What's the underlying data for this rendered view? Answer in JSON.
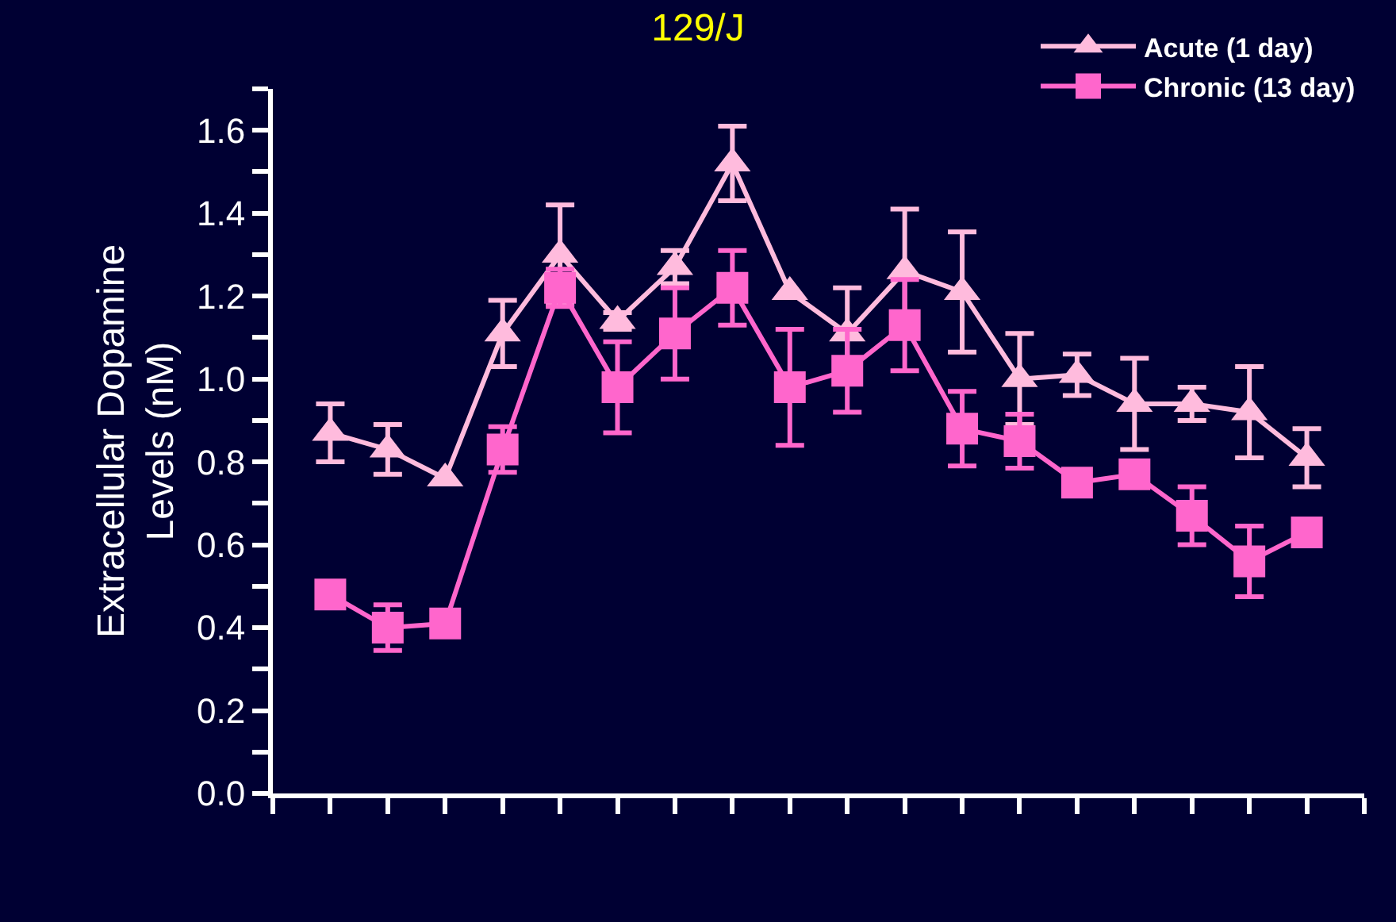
{
  "chart_data": {
    "type": "line",
    "title": "129/J",
    "ylabel": "Extracellular Dopamine\nLevels (nM)",
    "categories": [
      null,
      null,
      null,
      null,
      null,
      null,
      null,
      null,
      null,
      null,
      null,
      null,
      null,
      null,
      null,
      null,
      null,
      null,
      null,
      null
    ],
    "ylim": [
      0,
      1.7
    ],
    "yticks": [
      {
        "value": 0,
        "label": "0.0"
      },
      {
        "value": 0.1,
        "label": null
      },
      {
        "value": 0.2,
        "label": "0.2"
      },
      {
        "value": 0.3,
        "label": null
      },
      {
        "value": 0.4,
        "label": "0.4"
      },
      {
        "value": 0.5,
        "label": null
      },
      {
        "value": 0.6,
        "label": "0.6"
      },
      {
        "value": 0.7,
        "label": null
      },
      {
        "value": 0.8,
        "label": "0.8"
      },
      {
        "value": 0.9,
        "label": null
      },
      {
        "value": 1.0,
        "label": "1.0"
      },
      {
        "value": 1.1,
        "label": null
      },
      {
        "value": 1.2,
        "label": "1.2"
      },
      {
        "value": 1.3,
        "label": null
      },
      {
        "value": 1.4,
        "label": "1.4"
      },
      {
        "value": 1.5,
        "label": null
      },
      {
        "value": 1.6,
        "label": "1.6"
      },
      {
        "value": 1.7,
        "label": null
      }
    ],
    "tick_labels": "y",
    "grid": false,
    "legend": "top right",
    "line_style": "solid",
    "series": [
      {
        "name": "Acute (1 day)",
        "color": "#ffbbdd",
        "marker": "triangle",
        "values": [
          null,
          0.87,
          0.83,
          0.76,
          1.11,
          1.3,
          1.14,
          1.27,
          1.52,
          1.21,
          1.11,
          1.26,
          1.21,
          1.0,
          1.01,
          0.94,
          0.94,
          0.92,
          0.81,
          null
        ],
        "errors": [
          null,
          0.07,
          0.06,
          null,
          0.08,
          0.12,
          0.02,
          0.04,
          0.09,
          null,
          0.11,
          0.15,
          0.145,
          0.11,
          0.05,
          0.11,
          0.04,
          0.11,
          0.07,
          null
        ]
      },
      {
        "name": "Chronic (13 day)",
        "color": "#ff66cc",
        "marker": "square",
        "values": [
          null,
          0.48,
          0.4,
          0.41,
          0.83,
          1.22,
          0.98,
          1.11,
          1.22,
          0.98,
          1.02,
          1.13,
          0.88,
          0.85,
          0.75,
          0.77,
          0.67,
          0.56,
          0.63,
          null
        ],
        "errors": [
          null,
          null,
          0.055,
          null,
          0.055,
          0.045,
          0.11,
          0.11,
          0.09,
          0.14,
          0.1,
          0.11,
          0.09,
          0.065,
          null,
          null,
          0.07,
          0.085,
          null,
          null
        ]
      }
    ]
  }
}
